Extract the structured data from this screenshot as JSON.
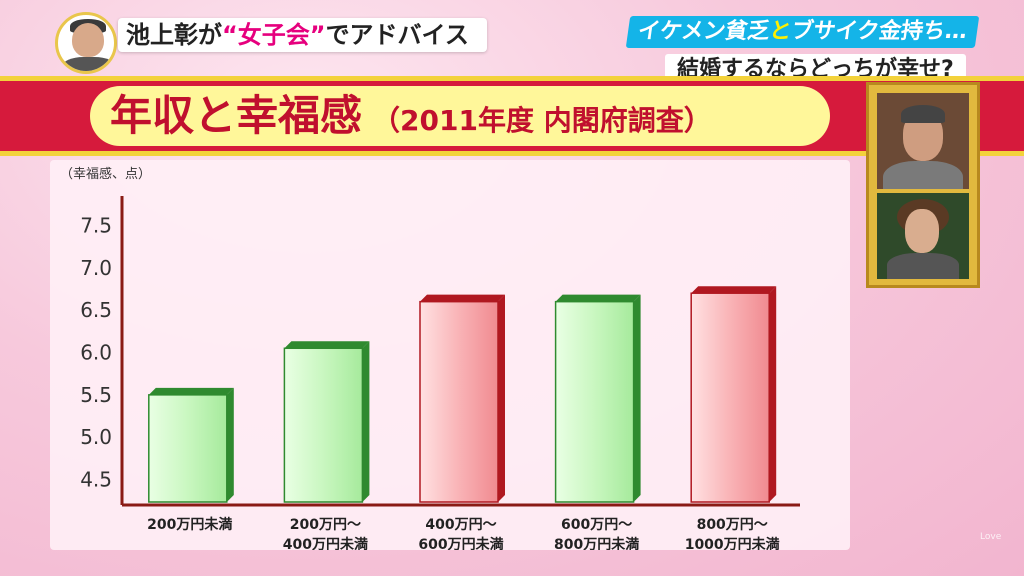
{
  "header": {
    "caption_pre": "池上彰が",
    "caption_quote_open": "“",
    "caption_highlight": "女子会",
    "caption_quote_close": "”",
    "caption_post": "でアドバイス",
    "topic_line1_a": "イケメン貧乏",
    "topic_line1_b": "と",
    "topic_line1_c": "ブサイク金持ち…",
    "topic_line2": "結婚するならどっちが幸せ?"
  },
  "title": {
    "main": "年収と幸福感",
    "sub": "（2011年度 内閣府調査）"
  },
  "corner_mark": "Love",
  "colors": {
    "banner": "#d61a3c",
    "banner_border": "#f3d23b",
    "title_text": "#c0102e",
    "green_bar_face": "#c9f7c0",
    "green_bar_edge": "#2f8a2f",
    "red_bar_face": "#f9b3b6",
    "red_bar_edge": "#b01820",
    "axis": "#8a1a14"
  },
  "chart_data": {
    "type": "bar",
    "ylabel": "（幸福感、点）",
    "ylim": [
      4.2,
      7.8
    ],
    "yticks": [
      4.5,
      5.0,
      5.5,
      6.0,
      6.5,
      7.0,
      7.5
    ],
    "ytick_labels": [
      "4.5",
      "5.0",
      "5.5",
      "6.0",
      "6.5",
      "7.0",
      "7.5"
    ],
    "categories": [
      [
        "200万円未満"
      ],
      [
        "200万円～",
        "400万円未満"
      ],
      [
        "400万円～",
        "600万円未満"
      ],
      [
        "600万円～",
        "800万円未満"
      ],
      [
        "800万円～",
        "1000万円未満"
      ]
    ],
    "values": [
      5.5,
      6.05,
      6.6,
      6.6,
      6.7
    ],
    "bar_colors": [
      "green",
      "green",
      "red",
      "green",
      "red"
    ],
    "grid": false
  }
}
